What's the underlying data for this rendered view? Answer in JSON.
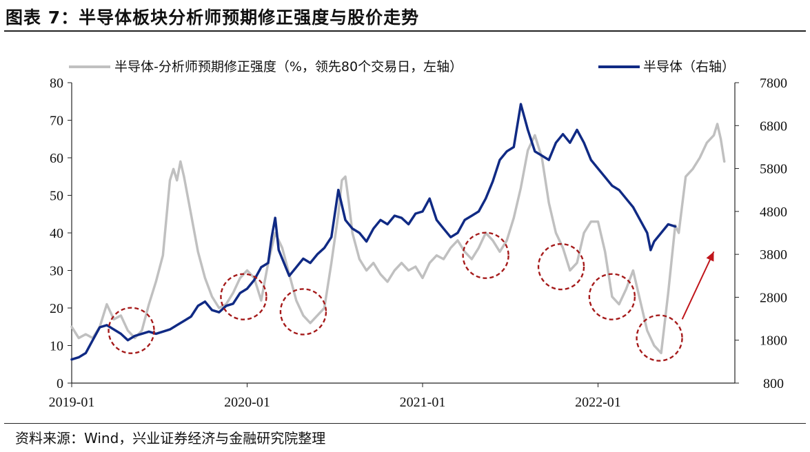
{
  "header": {
    "title": "图表 7：半导体板块分析师预期修正强度与股价走势"
  },
  "footer": {
    "source": "资料来源：Wind，兴业证券经济与金融研究院整理"
  },
  "colors": {
    "left_series": "#c0c0c0",
    "right_series": "#102a84",
    "circles": "#a51a1a",
    "arrow": "#c0161b"
  },
  "chart_data": {
    "type": "line",
    "title": "",
    "x_ticks": [
      "2019-01",
      "2020-01",
      "2021-01",
      "2022-01"
    ],
    "y_left": {
      "label": "左轴",
      "range": [
        0,
        80
      ],
      "ticks": [
        "0",
        "10",
        "20",
        "30",
        "40",
        "50",
        "60",
        "70",
        "80"
      ]
    },
    "y_right": {
      "label": "右轴",
      "range": [
        800,
        7800
      ],
      "ticks": [
        "800",
        "1800",
        "2800",
        "3800",
        "4800",
        "5800",
        "6800",
        "7800"
      ]
    },
    "series": [
      {
        "name": "半导体-分析师预期修正强度（%，领先80个交易日，左轴）",
        "axis": "left",
        "points": [
          [
            2019.0,
            15
          ],
          [
            2019.04,
            12
          ],
          [
            2019.08,
            13
          ],
          [
            2019.12,
            12
          ],
          [
            2019.16,
            15
          ],
          [
            2019.2,
            21
          ],
          [
            2019.24,
            17
          ],
          [
            2019.28,
            18
          ],
          [
            2019.32,
            14
          ],
          [
            2019.36,
            12
          ],
          [
            2019.4,
            14
          ],
          [
            2019.44,
            21
          ],
          [
            2019.48,
            27
          ],
          [
            2019.52,
            34
          ],
          [
            2019.54,
            44
          ],
          [
            2019.56,
            54
          ],
          [
            2019.58,
            57
          ],
          [
            2019.6,
            54
          ],
          [
            2019.62,
            59
          ],
          [
            2019.64,
            55
          ],
          [
            2019.68,
            45
          ],
          [
            2019.72,
            35
          ],
          [
            2019.76,
            28
          ],
          [
            2019.8,
            23
          ],
          [
            2019.84,
            20
          ],
          [
            2019.88,
            21
          ],
          [
            2019.92,
            24
          ],
          [
            2019.96,
            28
          ],
          [
            2020.0,
            30
          ],
          [
            2020.04,
            28
          ],
          [
            2020.08,
            22
          ],
          [
            2020.12,
            32
          ],
          [
            2020.16,
            40
          ],
          [
            2020.2,
            36
          ],
          [
            2020.24,
            29
          ],
          [
            2020.28,
            22
          ],
          [
            2020.32,
            18
          ],
          [
            2020.36,
            16
          ],
          [
            2020.4,
            18
          ],
          [
            2020.44,
            20
          ],
          [
            2020.48,
            32
          ],
          [
            2020.52,
            45
          ],
          [
            2020.54,
            54
          ],
          [
            2020.56,
            55
          ],
          [
            2020.58,
            48
          ],
          [
            2020.6,
            40
          ],
          [
            2020.64,
            33
          ],
          [
            2020.68,
            30
          ],
          [
            2020.72,
            32
          ],
          [
            2020.76,
            29
          ],
          [
            2020.8,
            27
          ],
          [
            2020.84,
            30
          ],
          [
            2020.88,
            32
          ],
          [
            2020.92,
            30
          ],
          [
            2020.96,
            31
          ],
          [
            2021.0,
            28
          ],
          [
            2021.04,
            32
          ],
          [
            2021.08,
            34
          ],
          [
            2021.12,
            33
          ],
          [
            2021.16,
            36
          ],
          [
            2021.2,
            38
          ],
          [
            2021.24,
            35
          ],
          [
            2021.28,
            33
          ],
          [
            2021.32,
            36
          ],
          [
            2021.36,
            40
          ],
          [
            2021.4,
            38
          ],
          [
            2021.44,
            35
          ],
          [
            2021.48,
            38
          ],
          [
            2021.52,
            44
          ],
          [
            2021.56,
            52
          ],
          [
            2021.6,
            62
          ],
          [
            2021.64,
            66
          ],
          [
            2021.68,
            60
          ],
          [
            2021.72,
            48
          ],
          [
            2021.76,
            40
          ],
          [
            2021.8,
            36
          ],
          [
            2021.84,
            30
          ],
          [
            2021.88,
            32
          ],
          [
            2021.92,
            40
          ],
          [
            2021.96,
            43
          ],
          [
            2022.0,
            43
          ],
          [
            2022.04,
            35
          ],
          [
            2022.08,
            23
          ],
          [
            2022.12,
            21
          ],
          [
            2022.16,
            25
          ],
          [
            2022.2,
            30
          ],
          [
            2022.24,
            22
          ],
          [
            2022.28,
            14
          ],
          [
            2022.32,
            10
          ],
          [
            2022.36,
            8
          ],
          [
            2022.4,
            24
          ],
          [
            2022.44,
            42
          ],
          [
            2022.46,
            40
          ],
          [
            2022.5,
            55
          ],
          [
            2022.54,
            57
          ],
          [
            2022.58,
            60
          ],
          [
            2022.62,
            64
          ],
          [
            2022.66,
            66
          ],
          [
            2022.68,
            69
          ],
          [
            2022.7,
            65
          ],
          [
            2022.72,
            59
          ]
        ]
      },
      {
        "name": "半导体（右轴）",
        "axis": "right",
        "points": [
          [
            2019.0,
            1350
          ],
          [
            2019.04,
            1400
          ],
          [
            2019.08,
            1500
          ],
          [
            2019.12,
            1800
          ],
          [
            2019.16,
            2100
          ],
          [
            2019.2,
            2150
          ],
          [
            2019.24,
            2050
          ],
          [
            2019.28,
            1950
          ],
          [
            2019.32,
            1800
          ],
          [
            2019.36,
            1900
          ],
          [
            2019.4,
            1950
          ],
          [
            2019.44,
            2000
          ],
          [
            2019.48,
            1950
          ],
          [
            2019.52,
            2000
          ],
          [
            2019.56,
            2050
          ],
          [
            2019.6,
            2150
          ],
          [
            2019.64,
            2250
          ],
          [
            2019.68,
            2350
          ],
          [
            2019.72,
            2600
          ],
          [
            2019.76,
            2700
          ],
          [
            2019.8,
            2500
          ],
          [
            2019.84,
            2450
          ],
          [
            2019.88,
            2600
          ],
          [
            2019.92,
            2650
          ],
          [
            2019.96,
            2900
          ],
          [
            2020.0,
            3000
          ],
          [
            2020.04,
            3200
          ],
          [
            2020.08,
            3500
          ],
          [
            2020.12,
            3600
          ],
          [
            2020.14,
            4200
          ],
          [
            2020.16,
            4650
          ],
          [
            2020.18,
            3900
          ],
          [
            2020.2,
            3700
          ],
          [
            2020.24,
            3300
          ],
          [
            2020.28,
            3500
          ],
          [
            2020.32,
            3700
          ],
          [
            2020.36,
            3600
          ],
          [
            2020.4,
            3800
          ],
          [
            2020.44,
            3950
          ],
          [
            2020.48,
            4200
          ],
          [
            2020.52,
            5300
          ],
          [
            2020.56,
            4600
          ],
          [
            2020.6,
            4400
          ],
          [
            2020.64,
            4300
          ],
          [
            2020.68,
            4100
          ],
          [
            2020.72,
            4400
          ],
          [
            2020.76,
            4600
          ],
          [
            2020.8,
            4500
          ],
          [
            2020.84,
            4700
          ],
          [
            2020.88,
            4650
          ],
          [
            2020.92,
            4500
          ],
          [
            2020.96,
            4750
          ],
          [
            2021.0,
            4800
          ],
          [
            2021.04,
            5100
          ],
          [
            2021.08,
            4600
          ],
          [
            2021.12,
            4400
          ],
          [
            2021.16,
            4200
          ],
          [
            2021.2,
            4300
          ],
          [
            2021.24,
            4600
          ],
          [
            2021.28,
            4700
          ],
          [
            2021.32,
            4800
          ],
          [
            2021.36,
            5100
          ],
          [
            2021.4,
            5500
          ],
          [
            2021.44,
            6000
          ],
          [
            2021.48,
            6200
          ],
          [
            2021.52,
            6300
          ],
          [
            2021.56,
            7300
          ],
          [
            2021.6,
            6700
          ],
          [
            2021.64,
            6200
          ],
          [
            2021.68,
            6100
          ],
          [
            2021.72,
            6000
          ],
          [
            2021.76,
            6400
          ],
          [
            2021.8,
            6600
          ],
          [
            2021.84,
            6400
          ],
          [
            2021.88,
            6700
          ],
          [
            2021.92,
            6400
          ],
          [
            2021.96,
            6000
          ],
          [
            2022.0,
            5800
          ],
          [
            2022.04,
            5600
          ],
          [
            2022.08,
            5400
          ],
          [
            2022.12,
            5300
          ],
          [
            2022.16,
            5100
          ],
          [
            2022.2,
            4900
          ],
          [
            2022.24,
            4600
          ],
          [
            2022.28,
            4300
          ],
          [
            2022.3,
            3900
          ],
          [
            2022.32,
            4100
          ],
          [
            2022.36,
            4300
          ],
          [
            2022.4,
            4500
          ],
          [
            2022.44,
            4450
          ]
        ]
      }
    ],
    "annotations": [
      {
        "type": "dashed-circle",
        "x": 2019.34,
        "y_left": 14,
        "count": 1
      },
      {
        "type": "dashed-circle",
        "x": 2019.98,
        "y_left": 23,
        "count": 1
      },
      {
        "type": "dashed-circle",
        "x": 2020.32,
        "y_left": 19,
        "count": 1
      },
      {
        "type": "dashed-circle",
        "x": 2021.36,
        "y_left": 34,
        "count": 1
      },
      {
        "type": "dashed-circle",
        "x": 2021.79,
        "y_left": 31,
        "count": 1
      },
      {
        "type": "dashed-circle",
        "x": 2022.08,
        "y_left": 23,
        "count": 1
      },
      {
        "type": "dashed-circle",
        "x": 2022.35,
        "y_left": 12,
        "count": 1
      },
      {
        "type": "arrow",
        "from": [
          2022.48,
          17
        ],
        "to": [
          2022.66,
          35
        ]
      }
    ]
  }
}
